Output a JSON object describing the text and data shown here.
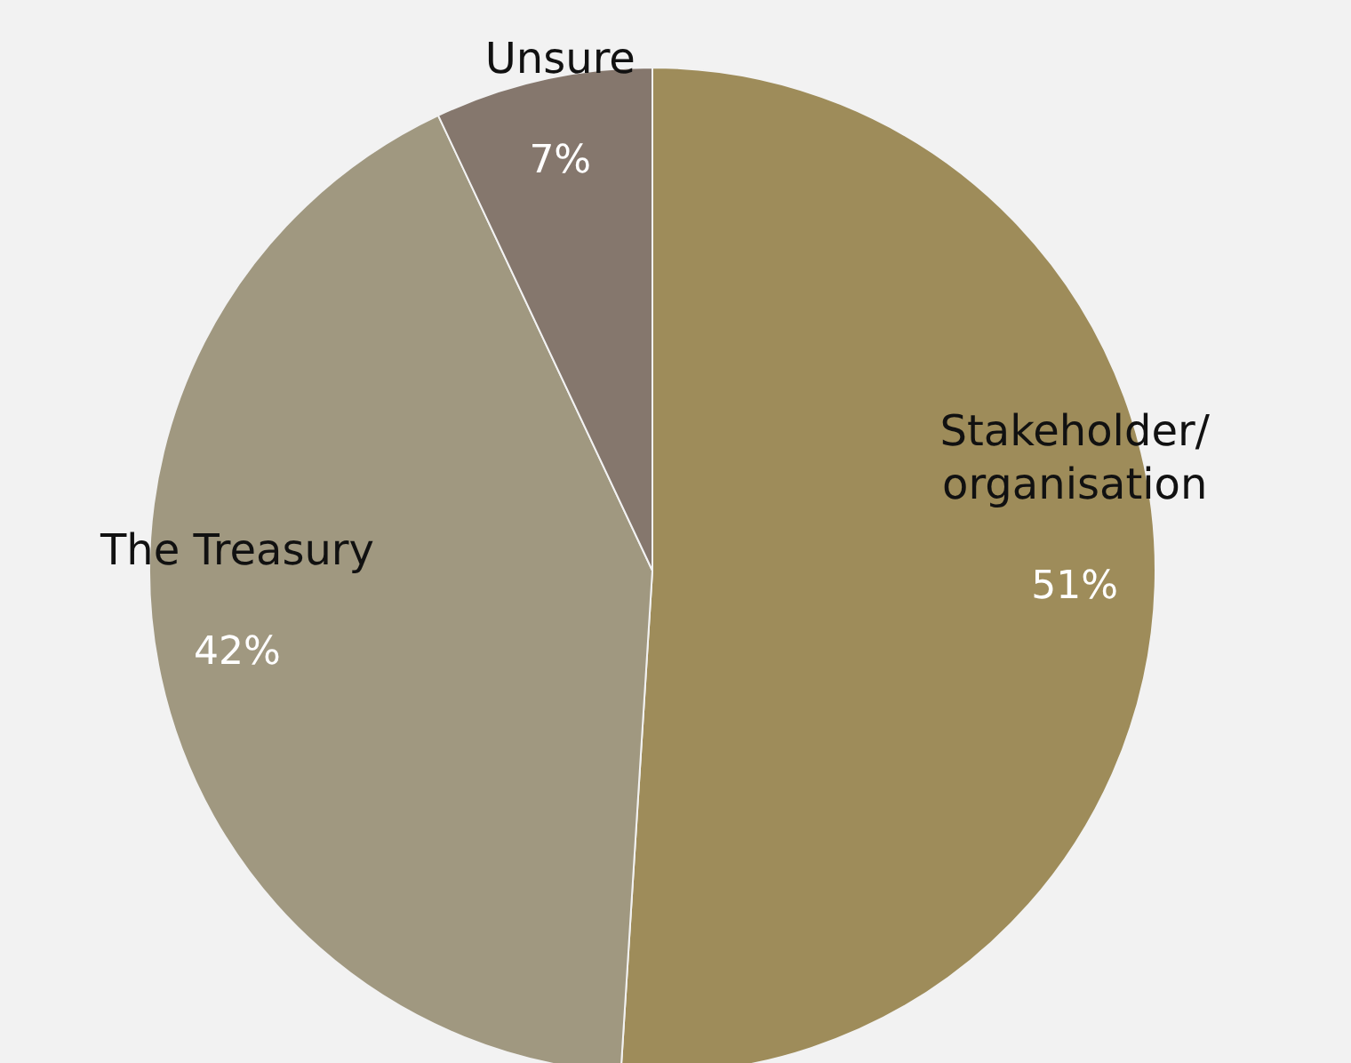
{
  "chart_data": {
    "type": "pie",
    "categories": [
      "Stakeholder/ organisation",
      "The Treasury",
      "Unsure"
    ],
    "values": [
      51,
      42,
      7
    ],
    "colors": [
      "#9e8c5a",
      "#a09880",
      "#85776d"
    ],
    "value_labels": [
      "51%",
      "42%",
      "7%"
    ]
  }
}
